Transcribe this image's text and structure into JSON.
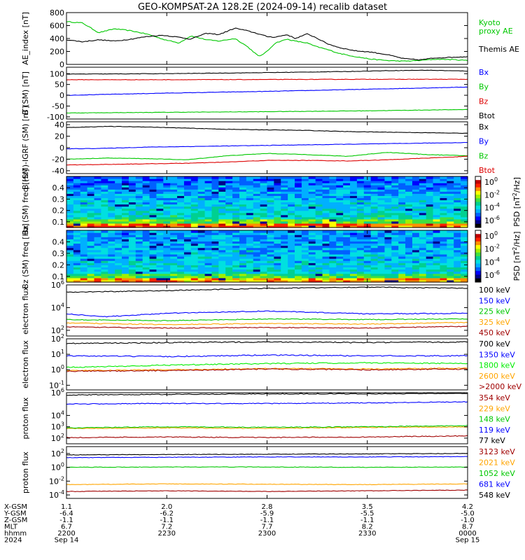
{
  "title": "GEO-KOMPSAT-2A 128.2E (2024-09-14) recalib dataset",
  "colors": {
    "black": "#000000",
    "blue": "#0000ff",
    "green": "#00c800",
    "red": "#dd0000",
    "orange": "#ffa500",
    "darkred": "#a00000",
    "brightgreen": "#00ee00",
    "cyan": "#00aaff"
  },
  "chart_data": [
    {
      "type": "line",
      "id": "ae",
      "ylabel": "AE_index [nT]",
      "ylim": [
        0,
        800
      ],
      "yticks": [
        "0",
        "200",
        "400",
        "600",
        "800"
      ],
      "grid": false,
      "series": [
        {
          "name": "Kyoto proxy AE",
          "label_lines": [
            "Kyoto",
            "proxy AE"
          ],
          "color": "#00c800",
          "x": [
            0,
            0.04,
            0.08,
            0.12,
            0.16,
            0.2,
            0.24,
            0.28,
            0.31,
            0.33,
            0.35,
            0.38,
            0.42,
            0.45,
            0.48,
            0.5,
            0.52,
            0.55,
            0.57,
            0.6,
            0.62,
            0.65,
            0.68,
            0.72,
            0.76,
            0.8,
            0.84,
            0.88,
            0.92,
            0.96,
            1.0
          ],
          "y": [
            660,
            640,
            490,
            550,
            520,
            470,
            390,
            330,
            440,
            410,
            380,
            360,
            400,
            280,
            120,
            200,
            330,
            390,
            360,
            330,
            280,
            230,
            170,
            120,
            80,
            60,
            50,
            60,
            80,
            75,
            60
          ]
        },
        {
          "name": "Themis AE",
          "label_lines": [
            "Themis AE"
          ],
          "color": "#000000",
          "x": [
            0,
            0.04,
            0.08,
            0.12,
            0.16,
            0.2,
            0.24,
            0.28,
            0.31,
            0.33,
            0.35,
            0.38,
            0.42,
            0.45,
            0.48,
            0.5,
            0.52,
            0.55,
            0.57,
            0.6,
            0.62,
            0.65,
            0.68,
            0.72,
            0.76,
            0.8,
            0.84,
            0.88,
            0.92,
            0.96,
            1.0
          ],
          "y": [
            380,
            350,
            380,
            360,
            390,
            430,
            450,
            420,
            390,
            440,
            480,
            460,
            560,
            520,
            470,
            430,
            420,
            460,
            400,
            470,
            420,
            320,
            260,
            210,
            190,
            150,
            90,
            70,
            100,
            110,
            120
          ]
        }
      ]
    },
    {
      "type": "line",
      "id": "b",
      "ylabel": "B (SM) [nT]",
      "ylim": [
        -110,
        130
      ],
      "yticks": [
        "-100",
        "-50",
        "0",
        "50",
        "100"
      ],
      "tickvals": [
        -100,
        -50,
        0,
        50,
        100
      ],
      "series": [
        {
          "name": "Bx",
          "color": "#0000ff",
          "x": [
            0,
            0.25,
            0.5,
            0.75,
            1.0
          ],
          "y": [
            0,
            10,
            18,
            28,
            38
          ]
        },
        {
          "name": "By",
          "color": "#00c800",
          "x": [
            0,
            0.25,
            0.5,
            0.75,
            1.0
          ],
          "y": [
            -82,
            -79,
            -76,
            -72,
            -66
          ]
        },
        {
          "name": "Bz",
          "color": "#dd0000",
          "x": [
            0,
            0.25,
            0.5,
            0.75,
            1.0
          ],
          "y": [
            72,
            72,
            73,
            74,
            74
          ]
        },
        {
          "name": "Btot",
          "color": "#000000",
          "x": [
            0,
            0.25,
            0.5,
            0.7,
            0.8,
            0.9,
            1.0
          ],
          "y": [
            98,
            100,
            105,
            110,
            114,
            116,
            112
          ]
        }
      ]
    },
    {
      "type": "line",
      "id": "db",
      "ylabel": "B (SM)-IGRF (SM) [nT]",
      "ylim": [
        -45,
        45
      ],
      "yticks": [
        "-40",
        "-20",
        "0",
        "20",
        "40"
      ],
      "tickvals": [
        -40,
        -20,
        0,
        20,
        40
      ],
      "series": [
        {
          "name": "Bx",
          "color": "#000000",
          "x": [
            0,
            0.1,
            0.2,
            0.3,
            0.4,
            0.5,
            0.6,
            0.7,
            0.8,
            0.9,
            1.0
          ],
          "y": [
            35,
            37,
            36,
            34,
            32,
            31,
            30,
            28,
            27,
            26,
            25
          ]
        },
        {
          "name": "By",
          "color": "#0000ff",
          "x": [
            0,
            0.1,
            0.2,
            0.3,
            0.4,
            0.5,
            0.6,
            0.7,
            0.8,
            0.9,
            1.0
          ],
          "y": [
            -2,
            -1,
            1,
            2,
            3,
            4,
            5,
            6,
            7,
            8,
            9
          ]
        },
        {
          "name": "Bz",
          "color": "#00c800",
          "x": [
            0,
            0.1,
            0.2,
            0.3,
            0.4,
            0.5,
            0.6,
            0.7,
            0.8,
            0.9,
            1.0
          ],
          "y": [
            -20,
            -18,
            -19,
            -21,
            -14,
            -10,
            -12,
            -15,
            -8,
            -12,
            -14
          ]
        },
        {
          "name": "Btot",
          "color": "#dd0000",
          "x": [
            0,
            0.1,
            0.2,
            0.3,
            0.4,
            0.5,
            0.6,
            0.7,
            0.8,
            0.9,
            1.0
          ],
          "y": [
            -30,
            -29,
            -28,
            -27,
            -25,
            -22,
            -22,
            -23,
            -21,
            -18,
            -15
          ]
        }
      ]
    },
    {
      "type": "heatmap",
      "id": "bxspec",
      "ylabel": "Bx (SM) freq [Hz]",
      "ylim": [
        0.05,
        0.5
      ],
      "yticks": [
        "0.1",
        "0.2",
        "0.3",
        "0.4"
      ],
      "tickvals": [
        0.1,
        0.2,
        0.3,
        0.4
      ],
      "colorbar": {
        "title": "PSD [nT^2/Hz]",
        "labels": [
          "10^0",
          "10^-2",
          "10^-4",
          "10^-6"
        ]
      }
    },
    {
      "type": "heatmap",
      "id": "bzspec",
      "ylabel": "Bz (SM) freq [Hz]",
      "ylim": [
        0.05,
        0.5
      ],
      "yticks": [
        "0.1",
        "0.2",
        "0.3",
        "0.4"
      ],
      "tickvals": [
        0.1,
        0.2,
        0.3,
        0.4
      ],
      "colorbar": {
        "title": "PSD [nT^2/Hz]",
        "labels": [
          "10^0",
          "10^-2",
          "10^-4",
          "10^-6"
        ]
      }
    },
    {
      "type": "line",
      "id": "ef1",
      "ylabel": "electron flux",
      "log": true,
      "ylim": [
        1.5,
        6
      ],
      "yticks": [
        "10^2",
        "10^4",
        "10^6"
      ],
      "tickvals": [
        2,
        4,
        6
      ],
      "series": [
        {
          "name": "100 keV",
          "color": "#000000",
          "x": [
            0,
            0.25,
            0.5,
            0.75,
            1.0
          ],
          "y": [
            5.35,
            5.5,
            5.7,
            5.8,
            5.7
          ]
        },
        {
          "name": "150 keV",
          "color": "#0000ff",
          "x": [
            0,
            0.1,
            0.25,
            0.5,
            0.75,
            1.0
          ],
          "y": [
            3.45,
            3.2,
            3.5,
            3.7,
            3.45,
            3.5
          ]
        },
        {
          "name": "225 keV",
          "color": "#00c800",
          "x": [
            0,
            0.25,
            0.5,
            0.75,
            1.0
          ],
          "y": [
            2.95,
            2.85,
            3.0,
            2.95,
            3.0
          ]
        },
        {
          "name": "325 keV",
          "color": "#ffa500",
          "x": [
            0,
            0.25,
            0.5,
            0.75,
            1.0
          ],
          "y": [
            2.65,
            2.5,
            2.6,
            2.55,
            2.7
          ]
        },
        {
          "name": "450 keV",
          "color": "#a00000",
          "x": [
            0,
            0.25,
            0.5,
            0.75,
            1.0
          ],
          "y": [
            2.3,
            2.2,
            2.25,
            2.2,
            2.35
          ]
        }
      ]
    },
    {
      "type": "line",
      "id": "ef2",
      "ylabel": "electron flux",
      "log": true,
      "ylim": [
        -1.3,
        2
      ],
      "yticks": [
        "10^-1",
        "10^0",
        "10^1",
        "10^2"
      ],
      "tickvals": [
        -1,
        0,
        1,
        2
      ],
      "series": [
        {
          "name": "700 keV",
          "color": "#000000",
          "x": [
            0,
            0.25,
            0.5,
            0.75,
            1.0
          ],
          "y": [
            1.7,
            1.75,
            1.8,
            1.75,
            1.8
          ]
        },
        {
          "name": "1350 keV",
          "color": "#0000ff",
          "x": [
            0,
            0.25,
            0.5,
            0.75,
            1.0
          ],
          "y": [
            0.9,
            0.85,
            0.95,
            0.9,
            0.9
          ]
        },
        {
          "name": "1800 keV",
          "color": "#00ee00",
          "x": [
            0,
            0.25,
            0.5,
            0.75,
            1.0
          ],
          "y": [
            0.15,
            0.3,
            0.4,
            0.45,
            0.4
          ]
        },
        {
          "name": "2600 keV",
          "color": "#ffa500",
          "x": [
            0,
            0.25,
            0.5,
            0.75,
            1.0
          ],
          "y": [
            -0.05,
            0.0,
            0.08,
            0.05,
            0.1
          ]
        },
        {
          "name": ">2000 keV",
          "color": "#a00000",
          "x": [
            0,
            0.25,
            0.5,
            0.75,
            1.0
          ],
          "y": [
            -0.1,
            -0.05,
            0.05,
            0.0,
            0.05
          ]
        }
      ]
    },
    {
      "type": "line",
      "id": "pf1",
      "ylabel": "proton flux",
      "log": true,
      "ylim": [
        1.5,
        6
      ],
      "yticks": [
        "10^2",
        "10^3",
        "10^4",
        "10^6"
      ],
      "tickvals": [
        2,
        3,
        4,
        6
      ],
      "series": [
        {
          "name": "354 keV",
          "color": "#a00000",
          "x": [
            0,
            0.25,
            0.5,
            0.75,
            1.0
          ],
          "y": [
            2.05,
            2.1,
            2.05,
            2.1,
            2.2
          ]
        },
        {
          "name": "229 keV",
          "color": "#ffa500",
          "x": [
            0,
            0.25,
            0.5,
            0.75,
            1.0
          ],
          "y": [
            2.85,
            2.9,
            2.85,
            2.95,
            3.0
          ]
        },
        {
          "name": "148 keV",
          "color": "#00c800",
          "x": [
            0,
            0.25,
            0.5,
            0.75,
            1.0
          ],
          "y": [
            2.9,
            3.0,
            2.95,
            3.0,
            3.1
          ]
        },
        {
          "name": "119 keV",
          "color": "#0000ff",
          "x": [
            0,
            0.25,
            0.5,
            0.75,
            1.0
          ],
          "y": [
            5.0,
            5.05,
            5.05,
            5.1,
            5.2
          ]
        },
        {
          "name": "77 keV",
          "color": "#000000",
          "x": [
            0,
            0.25,
            0.5,
            0.75,
            1.0
          ],
          "y": [
            5.8,
            5.85,
            5.9,
            5.9,
            5.95
          ]
        }
      ]
    },
    {
      "type": "line",
      "id": "pf2",
      "ylabel": "proton flux",
      "log": true,
      "ylim": [
        -4.5,
        3
      ],
      "yticks": [
        "10^2",
        "10^0",
        "10^-2",
        "10^-4"
      ],
      "tickvals": [
        2,
        0,
        -2,
        -4
      ],
      "series": [
        {
          "name": "3123 keV",
          "color": "#a00000",
          "x": [
            0,
            0.25,
            0.5,
            0.75,
            1.0
          ],
          "y": [
            -3.5,
            -3.4,
            -3.5,
            -3.4,
            -3.3
          ]
        },
        {
          "name": "2021 keV",
          "color": "#ffa500",
          "x": [
            0,
            0.25,
            0.5,
            0.75,
            1.0
          ],
          "y": [
            -2.5,
            -2.4,
            -2.45,
            -2.5,
            -2.4
          ]
        },
        {
          "name": "1052 keV",
          "color": "#00c800",
          "x": [
            0,
            0.25,
            0.5,
            0.75,
            1.0
          ],
          "y": [
            0.0,
            0.05,
            0.05,
            0.0,
            0.05
          ]
        },
        {
          "name": "681 keV",
          "color": "#0000ff",
          "x": [
            0,
            0.25,
            0.5,
            0.75,
            1.0
          ],
          "y": [
            1.4,
            1.45,
            1.5,
            1.5,
            1.55
          ]
        },
        {
          "name": "548 keV",
          "color": "#000000",
          "x": [
            0,
            0.25,
            0.5,
            0.75,
            1.0
          ],
          "y": [
            1.8,
            1.85,
            1.9,
            1.95,
            2.0
          ]
        }
      ]
    }
  ],
  "xaxis": {
    "row_labels": [
      "X-GSM",
      "Y-GSM",
      "Z-GSM",
      "MLT",
      "hhmm",
      "2024"
    ],
    "columns": [
      {
        "x": 0.0,
        "values": [
          "1.1",
          "-6.4",
          "-1.1",
          "6.7",
          "2200",
          "Sep 14"
        ]
      },
      {
        "x": 0.25,
        "values": [
          "2.0",
          "-6.2",
          "-1.1",
          "7.2",
          "2230",
          ""
        ]
      },
      {
        "x": 0.5,
        "values": [
          "2.8",
          "-5.9",
          "-1.1",
          "7.7",
          "2300",
          ""
        ]
      },
      {
        "x": 0.75,
        "values": [
          "3.5",
          "-5.5",
          "-1.1",
          "8.2",
          "2330",
          ""
        ]
      },
      {
        "x": 1.0,
        "values": [
          "4.2",
          "-5.0",
          "-1.0",
          "8.7",
          "0000",
          "Sep 15"
        ]
      }
    ]
  }
}
